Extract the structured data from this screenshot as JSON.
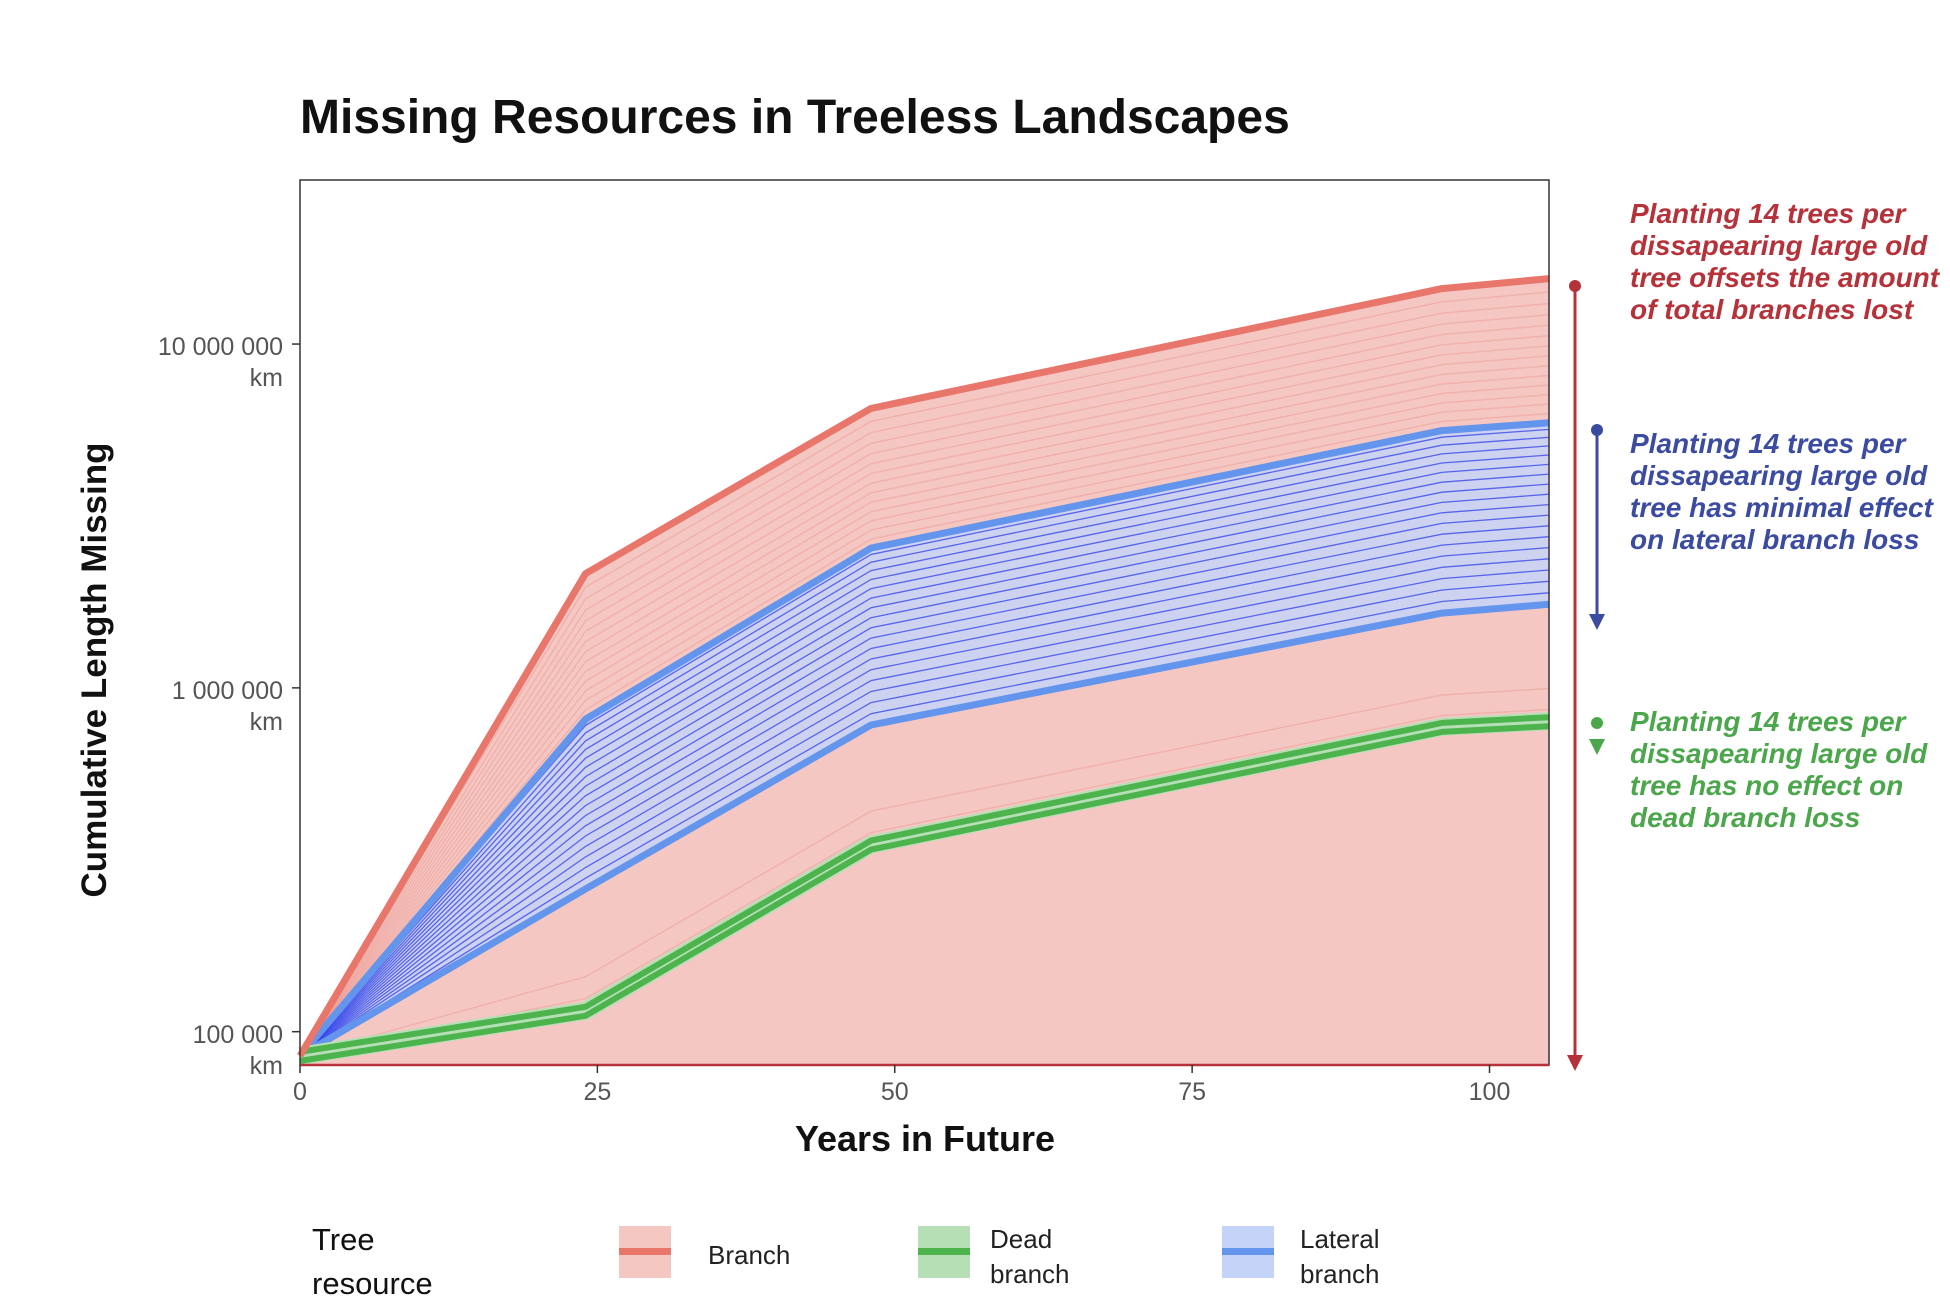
{
  "chart_data": {
    "type": "area",
    "title": "Missing Resources in Treeless Landscapes",
    "xlabel": "Years in Future",
    "ylabel": "Cumulative Length Missing",
    "y_scale": "log10",
    "xlim": [
      0,
      105
    ],
    "ylim": [
      80000,
      30000000
    ],
    "x_ticks": [
      0,
      25,
      50,
      75,
      100
    ],
    "x_tick_labels": [
      "0",
      "25",
      "50",
      "75",
      "100"
    ],
    "y_ticks": [
      100000,
      1000000,
      10000000
    ],
    "y_tick_labels": [
      {
        "value": "100 000",
        "unit": "km"
      },
      {
        "value": "1 000 000",
        "unit": "km"
      },
      {
        "value": "10 000 000",
        "unit": "km"
      }
    ],
    "x": [
      0,
      24,
      48,
      96,
      105
    ],
    "series": [
      {
        "name": "Branch",
        "color": "#E8766B",
        "fill": "#F4C7C3",
        "values": [
          85000,
          2150000,
          6500000,
          14500000,
          15500000
        ]
      },
      {
        "name": "Lateral branch",
        "color": "#6495ED",
        "fill": "#C5D3F8",
        "values": [
          85000,
          810000,
          2550000,
          5600000,
          5900000
        ]
      },
      {
        "name": "Lateral branch",
        "color": "#6495ED",
        "values": [
          85000,
          260000,
          780000,
          1650000,
          1750000
        ]
      },
      {
        "name": "Dead branch",
        "color": "#4DB34D",
        "fill": "#B6DFB6",
        "values": [
          85000,
          115000,
          350000,
          770000,
          800000
        ]
      }
    ],
    "grid": false,
    "legend": {
      "position": "bottom",
      "title": "Tree resource"
    },
    "annotations": [
      {
        "text": "Planting 14 trees per dissapearing large old tree offsets the amount of total branches lost",
        "color": "#B5323A"
      },
      {
        "text": "Planting 14 trees per dissapearing large old tree has minimal effect on lateral branch loss",
        "color": "#3B4BA0"
      },
      {
        "text": "Planting 14 trees per dissapearing large old tree has no effect on dead branch loss",
        "color": "#4CA64C"
      }
    ]
  },
  "legend_items": [
    {
      "label": "Branch",
      "color": "#E8766B",
      "fill": "#F4C7C3"
    },
    {
      "label": "Dead branch",
      "color": "#4DB34D",
      "fill": "#B6DFB6"
    },
    {
      "label": "Lateral branch",
      "color": "#6495ED",
      "fill": "#C5D3F8"
    }
  ]
}
